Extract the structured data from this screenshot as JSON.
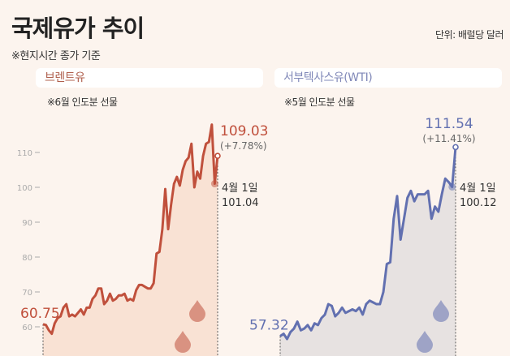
{
  "header": {
    "title": "국제유가 추이",
    "note": "※현지시간 종가 기준",
    "unit": "단위: 배럴당 달러"
  },
  "colors": {
    "brent": "#c0503c",
    "brent_fill": "#f9e2d4",
    "wti": "#6270b0",
    "wti_fill": "#e7e2e1",
    "axis": "#aaa"
  },
  "chart_data": [
    {
      "type": "line",
      "title": "브렌트유",
      "subtitle": "※6월 인도분 선물",
      "ylim": [
        55,
        120
      ],
      "yticks": [
        "60",
        "70",
        "80",
        "90",
        "100",
        "110"
      ],
      "values": [
        60.75,
        60.5,
        59,
        58,
        61,
        62.5,
        63,
        65.5,
        66.5,
        63,
        63.5,
        63,
        64,
        65,
        63.5,
        65.5,
        65.5,
        68,
        69,
        71,
        71,
        66.5,
        67.5,
        69.5,
        67.5,
        68,
        69,
        69,
        69.5,
        67.5,
        68,
        67.5,
        70.5,
        72,
        72,
        71.5,
        71,
        71,
        72.5,
        81,
        81.5,
        88,
        99.5,
        88,
        95,
        101,
        103,
        100.5,
        105,
        107.5,
        108.5,
        112.5,
        100,
        104.5,
        102.5,
        109,
        112.5,
        113,
        118,
        101.04,
        109.03
      ],
      "start_label": "60.75",
      "end_value": "109.03",
      "end_change": "(+7.78%)",
      "marker_date": "4월 1일",
      "marker_value": "101.04"
    },
    {
      "type": "line",
      "title": "서부텍사스유(WTI)",
      "subtitle": "※5월 인도분 선물",
      "ylim": [
        55,
        120
      ],
      "values": [
        57.32,
        58,
        56.5,
        58.5,
        59.5,
        61.5,
        59,
        59.5,
        60.5,
        59,
        61,
        60.5,
        62.5,
        63.5,
        66.5,
        66,
        63,
        64,
        65.5,
        64,
        64.5,
        65,
        64.5,
        65.5,
        63.5,
        66.5,
        67.5,
        67,
        66.5,
        66.5,
        70,
        78,
        78.5,
        91,
        97.5,
        85,
        91,
        97,
        99,
        96,
        98,
        98,
        98,
        99,
        91,
        94.5,
        93,
        98,
        102.5,
        101.5,
        100.12,
        111.54
      ],
      "start_label": "57.32",
      "end_value": "111.54",
      "end_change": "(+11.41%)",
      "marker_date": "4월 1일",
      "marker_value": "100.12"
    }
  ]
}
